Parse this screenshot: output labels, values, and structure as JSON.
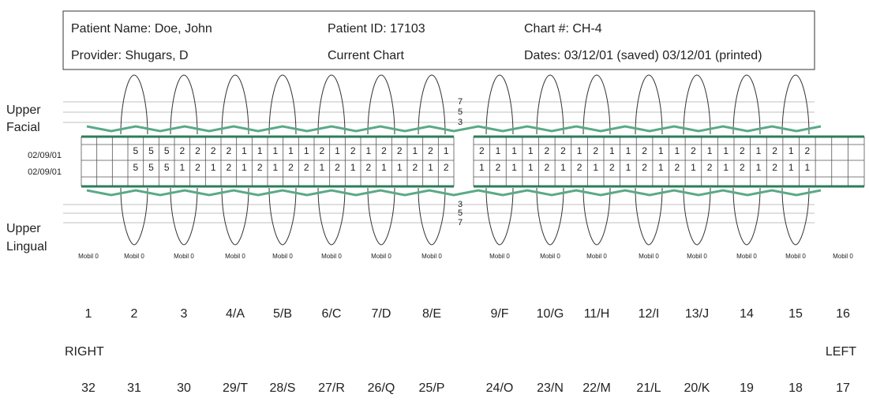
{
  "header": {
    "patient_name": "Patient Name: Doe, John",
    "patient_id": "Patient ID: 17103",
    "chart_number": "Chart #: CH-4",
    "provider": "Provider: Shugars, D",
    "chart_kind": "Current Chart",
    "dates": "Dates: 03/12/01 (saved) 03/12/01 (printed)"
  },
  "labels": {
    "upper_facial": [
      "Upper",
      "Facial"
    ],
    "upper_lingual": [
      "Upper",
      "Lingual"
    ],
    "right": "RIGHT",
    "left": "LEFT"
  },
  "scale_top": [
    "7",
    "5",
    "3"
  ],
  "scale_bottom": [
    "3",
    "5",
    "7"
  ],
  "rows": [
    {
      "date": "02/09/01",
      "left": [
        "5",
        "5",
        "5",
        "2",
        "2",
        "2",
        "2",
        "1",
        "1",
        "1",
        "1",
        "1",
        "2",
        "1",
        "2",
        "1",
        "2",
        "2",
        "1",
        "2",
        "1"
      ],
      "right": [
        "2",
        "1",
        "1",
        "1",
        "2",
        "2",
        "1",
        "2",
        "1",
        "1",
        "2",
        "1",
        "1",
        "2",
        "1",
        "1",
        "2",
        "1",
        "2",
        "1",
        "2"
      ]
    },
    {
      "date": "02/09/01",
      "left": [
        "5",
        "5",
        "5",
        "1",
        "2",
        "1",
        "2",
        "1",
        "2",
        "1",
        "2",
        "2",
        "1",
        "2",
        "1",
        "2",
        "1",
        "1",
        "2",
        "1",
        "2"
      ],
      "right": [
        "1",
        "2",
        "1",
        "1",
        "2",
        "1",
        "2",
        "1",
        "2",
        "1",
        "2",
        "1",
        "2",
        "1",
        "2",
        "1",
        "2",
        "1",
        "2",
        "1",
        "1"
      ]
    }
  ],
  "mobility": [
    "Mobil 0",
    "Mobil 0",
    "Mobil 0",
    "Mobil 0",
    "Mobil 0",
    "Mobil 0",
    "Mobil 0",
    "Mobil 0",
    "Mobil 0",
    "Mobil 0",
    "Mobil 0",
    "Mobil 0",
    "Mobil 0",
    "Mobil 0",
    "Mobil 0",
    "Mobil 0"
  ],
  "teeth_upper": [
    "1",
    "2",
    "3",
    "4/A",
    "5/B",
    "6/C",
    "7/D",
    "8/E",
    "9/F",
    "10/G",
    "11/H",
    "12/I",
    "13/J",
    "14",
    "15",
    "16"
  ],
  "teeth_lower": [
    "32",
    "31",
    "30",
    "29/T",
    "28/S",
    "27/R",
    "26/Q",
    "25/P",
    "24/O",
    "23/N",
    "22/M",
    "21/L",
    "20/K",
    "19",
    "18",
    "17"
  ]
}
